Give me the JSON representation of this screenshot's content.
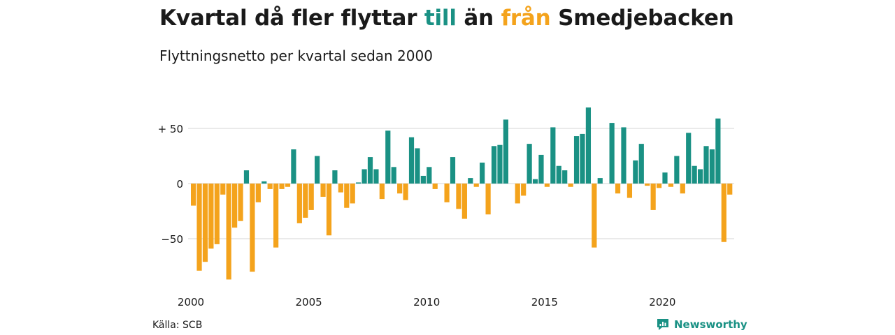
{
  "title": {
    "part1": "Kvartal då fler flyttar ",
    "positive_word": "till",
    "part2": " än ",
    "negative_word": "från",
    "part3": " Smedjebacken"
  },
  "subtitle": "Flyttningsnetto per kvartal sedan 2000",
  "source": "Källa: SCB",
  "logo": {
    "text": "Newsworthy",
    "icon": "newsworthy-logo-icon"
  },
  "colors": {
    "positive": "#1a9184",
    "negative": "#f4a31c",
    "grid": "#dddddd"
  },
  "chart_data": {
    "type": "bar",
    "title": "Kvartal då fler flyttar till än från Smedjebacken",
    "subtitle": "Flyttningsnetto per kvartal sedan 2000",
    "x_start": "2000-Q1",
    "x_ticks": [
      "2000",
      "2005",
      "2010",
      "2015",
      "2020"
    ],
    "y_ticks": [
      {
        "value": 50,
        "label": "+ 50"
      },
      {
        "value": 0,
        "label": "0"
      },
      {
        "value": -50,
        "label": "−50"
      }
    ],
    "ylim": [
      -90,
      72
    ],
    "grid": true,
    "values": [
      -20,
      -79,
      -71,
      -59,
      -55,
      -10,
      -87,
      -40,
      -34,
      12,
      -80,
      -17,
      2,
      -5,
      -58,
      -5,
      -3,
      31,
      -36,
      -31,
      -24,
      25,
      -12,
      -47,
      12,
      -8,
      -22,
      -18,
      1,
      13,
      24,
      13,
      -14,
      48,
      15,
      -9,
      -15,
      42,
      32,
      7,
      15,
      -5,
      0,
      -17,
      24,
      -23,
      -32,
      5,
      -3,
      19,
      -28,
      34,
      35,
      58,
      0,
      -18,
      -11,
      36,
      4,
      26,
      -3,
      51,
      16,
      12,
      -3,
      43,
      45,
      69,
      -58,
      5,
      0,
      55,
      -9,
      51,
      -13,
      21,
      36,
      -2,
      -24,
      -4,
      10,
      -3,
      25,
      -9,
      46,
      16,
      13,
      34,
      31,
      59,
      -53,
      -10
    ]
  }
}
